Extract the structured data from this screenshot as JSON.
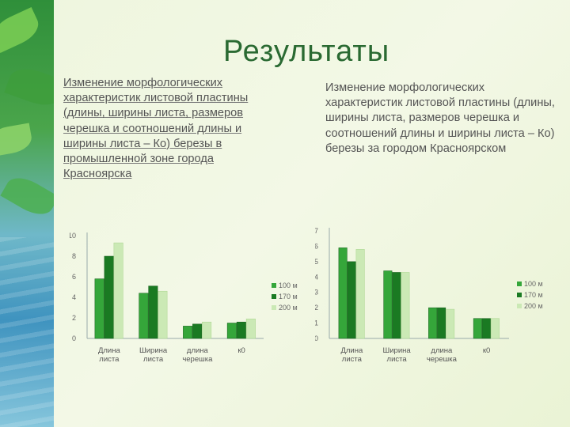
{
  "title": "Результаты",
  "left_text": "Изменение морфологических характеристик листовой пластины (длины, ширины листа, размеров черешка и соотношений длины и ширины листа – Ко) березы в промышленной зоне города Красноярска",
  "right_text": "Изменение морфологических характеристик листовой пластины (длины, ширины листа, размеров черешка и соотношений длины и ширины листа – Ко) березы за городом Красноярском",
  "colors": {
    "s100": "#35a63a",
    "s170": "#1a7a22",
    "s200": "#cbe9b5"
  },
  "chart_data": [
    {
      "type": "bar",
      "categories": [
        [
          "Длина",
          "листа"
        ],
        [
          "Ширина",
          "листа"
        ],
        [
          "длина",
          "черешка"
        ],
        [
          "к0"
        ]
      ],
      "series": [
        {
          "name": "100 м",
          "values": [
            5.8,
            4.4,
            1.2,
            1.5
          ]
        },
        {
          "name": "170 м",
          "values": [
            8.0,
            5.1,
            1.4,
            1.6
          ]
        },
        {
          "name": "200 м",
          "values": [
            9.3,
            4.6,
            1.6,
            1.9
          ]
        }
      ],
      "yticks": [
        0,
        2,
        4,
        6,
        8,
        10
      ],
      "ylim": [
        0,
        10
      ],
      "legend": "right"
    },
    {
      "type": "bar",
      "categories": [
        [
          "Длина",
          "листа"
        ],
        [
          "Ширина",
          "листа"
        ],
        [
          "длина",
          "черешка"
        ],
        [
          "к0"
        ]
      ],
      "series": [
        {
          "name": "100 м",
          "values": [
            5.9,
            4.4,
            2.0,
            1.3
          ]
        },
        {
          "name": "170 м",
          "values": [
            5.0,
            4.3,
            2.0,
            1.3
          ]
        },
        {
          "name": "200 м",
          "values": [
            5.8,
            4.3,
            1.9,
            1.3
          ]
        }
      ],
      "yticks": [
        0,
        1,
        2,
        3,
        4,
        5,
        6,
        7
      ],
      "ylim": [
        0,
        7
      ],
      "legend": "right"
    }
  ]
}
